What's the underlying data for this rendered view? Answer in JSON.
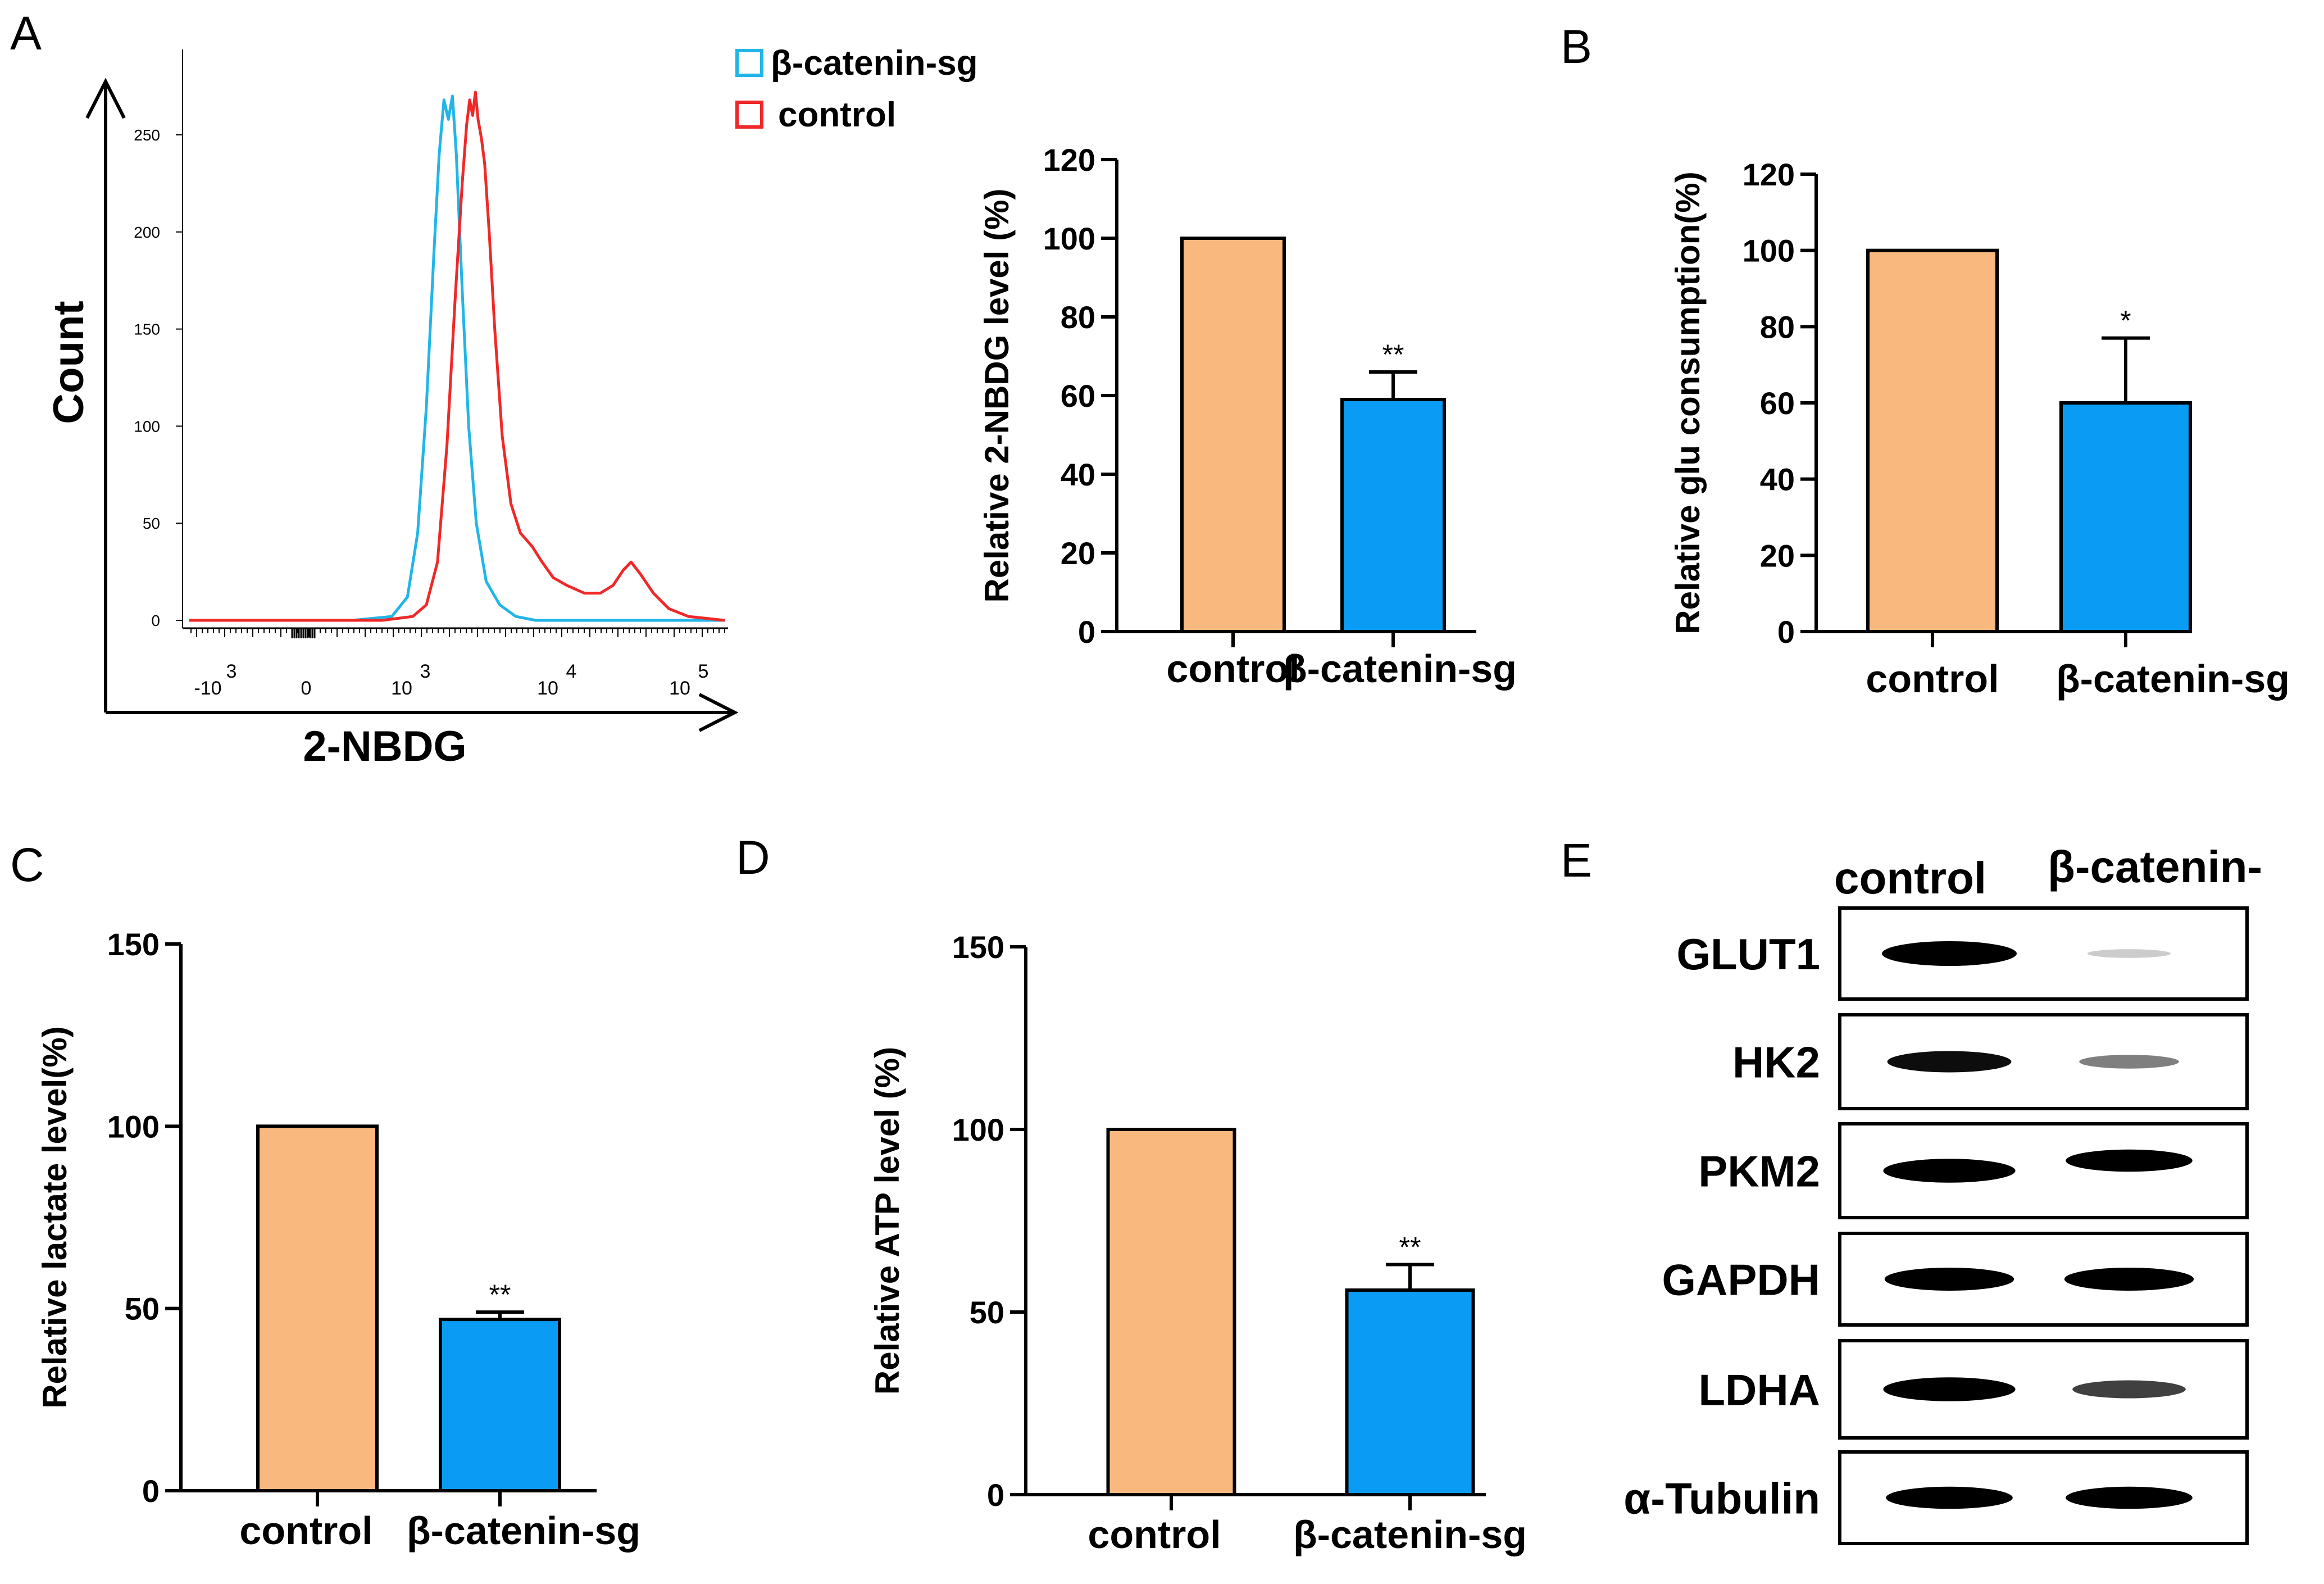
{
  "panels": {
    "a": "A",
    "b": "B",
    "c": "C",
    "d": "D",
    "e": "E"
  },
  "colors": {
    "control_bar": "#F9B97E",
    "treated_bar": "#0A9CF5",
    "control_line": "#F02828",
    "treated_line": "#21B5E8"
  },
  "flow": {
    "ylabel": "Count",
    "xlabel": "2-NBDG",
    "yticks": [
      "0",
      "50",
      "100",
      "150",
      "200",
      "250"
    ],
    "xticks": [
      {
        "base": "-10",
        "exp": "3"
      },
      {
        "base": "0",
        "exp": ""
      },
      {
        "base": "10",
        "exp": "3"
      },
      {
        "base": "10",
        "exp": "4"
      },
      {
        "base": "10",
        "exp": "5"
      }
    ],
    "legend": [
      {
        "label": "β-catenin-sg",
        "color": "#21B5E8"
      },
      {
        "label": "control",
        "color": "#F02828"
      }
    ]
  },
  "chart_data": [
    {
      "id": "A-histogram",
      "type": "line",
      "title": "",
      "xlabel": "2-NBDG",
      "ylabel": "Count",
      "x_scale": "biexponential",
      "xticks": [
        "-10^3",
        "0",
        "10^3",
        "10^4",
        "10^5"
      ],
      "ylim": [
        0,
        280
      ],
      "series": [
        {
          "name": "β-catenin-sg",
          "color": "#21B5E8",
          "points": [
            [
              -3000,
              0
            ],
            [
              -1000,
              0
            ],
            [
              0,
              0
            ],
            [
              500,
              0
            ],
            [
              900,
              2
            ],
            [
              1100,
              12
            ],
            [
              1300,
              45
            ],
            [
              1500,
              110
            ],
            [
              1700,
              190
            ],
            [
              1850,
              240
            ],
            [
              2000,
              268
            ],
            [
              2150,
              258
            ],
            [
              2300,
              270
            ],
            [
              2450,
              240
            ],
            [
              2700,
              170
            ],
            [
              3000,
              100
            ],
            [
              3400,
              50
            ],
            [
              4000,
              20
            ],
            [
              5000,
              8
            ],
            [
              6500,
              2
            ],
            [
              9000,
              0
            ],
            [
              20000,
              0
            ],
            [
              60000,
              0
            ],
            [
              200000,
              0
            ]
          ]
        },
        {
          "name": "control",
          "color": "#F02828",
          "points": [
            [
              -3000,
              0
            ],
            [
              -1000,
              0
            ],
            [
              0,
              0
            ],
            [
              800,
              0
            ],
            [
              1200,
              2
            ],
            [
              1500,
              8
            ],
            [
              1800,
              30
            ],
            [
              2100,
              90
            ],
            [
              2400,
              165
            ],
            [
              2700,
              225
            ],
            [
              2900,
              255
            ],
            [
              3050,
              268
            ],
            [
              3200,
              260
            ],
            [
              3350,
              272
            ],
            [
              3500,
              258
            ],
            [
              3700,
              248
            ],
            [
              3900,
              235
            ],
            [
              4200,
              200
            ],
            [
              4600,
              150
            ],
            [
              5200,
              95
            ],
            [
              6000,
              60
            ],
            [
              7000,
              45
            ],
            [
              8500,
              38
            ],
            [
              10000,
              30
            ],
            [
              12000,
              22
            ],
            [
              15000,
              18
            ],
            [
              20000,
              14
            ],
            [
              26000,
              14
            ],
            [
              32000,
              18
            ],
            [
              38000,
              26
            ],
            [
              43000,
              30
            ],
            [
              50000,
              24
            ],
            [
              62000,
              14
            ],
            [
              80000,
              6
            ],
            [
              110000,
              2
            ],
            [
              200000,
              0
            ]
          ]
        }
      ]
    },
    {
      "id": "A-bar",
      "type": "bar",
      "title": "",
      "xlabel": "",
      "ylabel": "Relative 2-NBDG level (%)",
      "ylim": [
        0,
        120
      ],
      "yticks": [
        0,
        20,
        40,
        60,
        80,
        100,
        120
      ],
      "categories": [
        "control",
        "β-catenin-sg"
      ],
      "values": [
        100,
        59
      ],
      "errors": [
        0,
        7
      ],
      "significance": [
        "",
        "**"
      ]
    },
    {
      "id": "B",
      "type": "bar",
      "title": "",
      "xlabel": "",
      "ylabel": "Relative glu consumption(%)",
      "ylim": [
        0,
        120
      ],
      "yticks": [
        0,
        20,
        40,
        60,
        80,
        100,
        120
      ],
      "categories": [
        "control",
        "β-catenin-sg"
      ],
      "values": [
        100,
        60
      ],
      "errors": [
        0,
        17
      ],
      "significance": [
        "",
        "*"
      ]
    },
    {
      "id": "C",
      "type": "bar",
      "title": "",
      "xlabel": "",
      "ylabel": "Relative lactate level(%)",
      "ylim": [
        0,
        150
      ],
      "yticks": [
        0,
        50,
        100,
        150
      ],
      "categories": [
        "control",
        "β-catenin-sg"
      ],
      "values": [
        100,
        47
      ],
      "errors": [
        0,
        2
      ],
      "significance": [
        "",
        "**"
      ]
    },
    {
      "id": "D",
      "type": "bar",
      "title": "",
      "xlabel": "",
      "ylabel": "Relative ATP level (%)",
      "ylim": [
        0,
        150
      ],
      "yticks": [
        0,
        50,
        100,
        150
      ],
      "categories": [
        "control",
        "β-catenin-sg"
      ],
      "values": [
        100,
        56
      ],
      "errors": [
        0,
        7
      ],
      "significance": [
        "",
        "**"
      ]
    },
    {
      "id": "E-blot",
      "type": "table",
      "title": "",
      "columns": [
        "control",
        "β-catenin-"
      ],
      "bands": [
        {
          "name": "GLUT1",
          "control": 1.0,
          "treated": 0.05
        },
        {
          "name": "HK2",
          "control": 0.8,
          "treated": 0.35
        },
        {
          "name": "PKM2",
          "control": 0.95,
          "treated": 0.85
        },
        {
          "name": "GAPDH",
          "control": 0.9,
          "treated": 0.9
        },
        {
          "name": "LDHA",
          "control": 0.95,
          "treated": 0.6
        },
        {
          "name": "α-Tubulin",
          "control": 0.85,
          "treated": 0.85
        }
      ]
    }
  ]
}
